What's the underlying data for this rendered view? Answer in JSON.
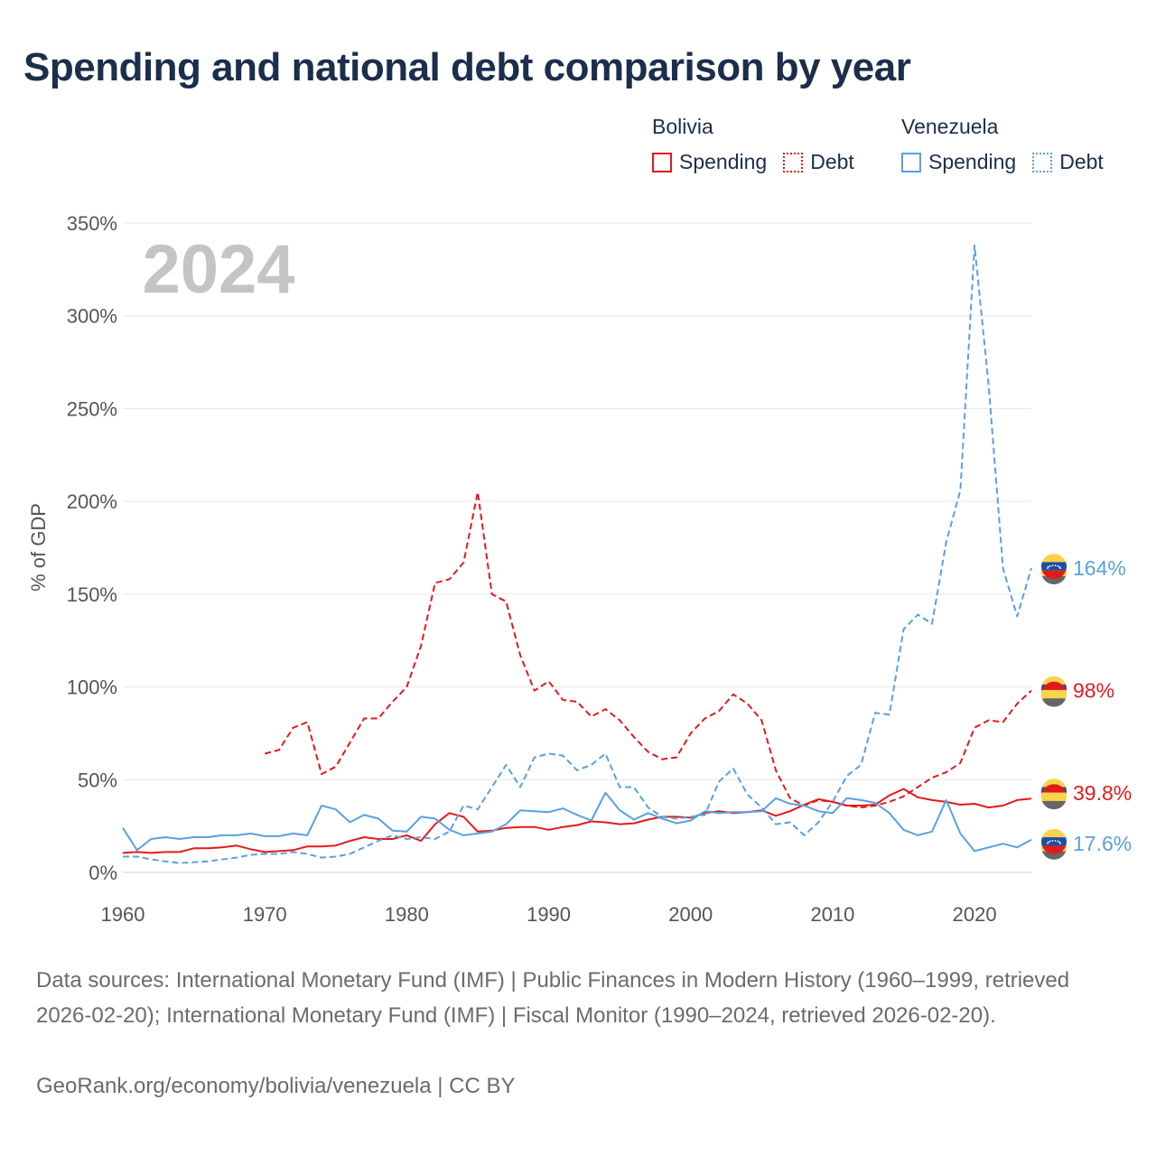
{
  "title": "Spending and national debt comparison by year",
  "legend": {
    "groups": [
      {
        "name": "Bolivia",
        "color": "#e31a1c",
        "items": [
          "Spending",
          "Debt"
        ]
      },
      {
        "name": "Venezuela",
        "color": "#5aa0e0",
        "items": [
          "Spending",
          "Debt"
        ]
      }
    ]
  },
  "year_label": "2024",
  "footer": {
    "sources": "Data sources: International Monetary Fund (IMF) | Public Finances in Modern History (1960–1999, retrieved 2026-02-20); International Monetary Fund (IMF) | Fiscal Monitor (1990–2024, retrieved 2026-02-20).",
    "credit": "GeoRank.org/economy/bolivia/venezuela | CC BY"
  },
  "chart_data": {
    "type": "line",
    "ylabel": "% of GDP",
    "xlim": [
      1960,
      2024
    ],
    "ylim": [
      0,
      350
    ],
    "x_ticks": [
      1960,
      1970,
      1980,
      1990,
      2000,
      2010,
      2020
    ],
    "y_ticks": [
      0,
      50,
      100,
      150,
      200,
      250,
      300,
      350
    ],
    "y_tick_labels": [
      "0%",
      "50%",
      "100%",
      "150%",
      "200%",
      "250%",
      "300%",
      "350%"
    ],
    "series": [
      {
        "name": "Bolivia Spending",
        "color": "#e31a1c",
        "dash": false,
        "end_label": "39.8%",
        "x": [
          1960,
          1961,
          1962,
          1963,
          1964,
          1965,
          1966,
          1967,
          1968,
          1969,
          1970,
          1971,
          1972,
          1973,
          1974,
          1975,
          1976,
          1977,
          1978,
          1979,
          1980,
          1981,
          1982,
          1983,
          1984,
          1985,
          1986,
          1987,
          1988,
          1989,
          1990,
          1991,
          1992,
          1993,
          1994,
          1995,
          1996,
          1997,
          1998,
          1999,
          2000,
          2001,
          2002,
          2003,
          2004,
          2005,
          2006,
          2007,
          2008,
          2009,
          2010,
          2011,
          2012,
          2013,
          2014,
          2015,
          2016,
          2017,
          2018,
          2019,
          2020,
          2021,
          2022,
          2023,
          2024
        ],
        "values": [
          10.5,
          11,
          10.5,
          11,
          11,
          13,
          13,
          13.5,
          14.5,
          12.5,
          11,
          11.5,
          12,
          14,
          14,
          14.5,
          17,
          19,
          18,
          18,
          20,
          17,
          26,
          32,
          30,
          22,
          22.5,
          24,
          24.5,
          24.5,
          23,
          24.5,
          25.5,
          27.5,
          27,
          26,
          26.5,
          28.5,
          30,
          30,
          29.5,
          32,
          33,
          32,
          32.5,
          33.5,
          30.5,
          33,
          36.5,
          39.5,
          38,
          36,
          36,
          36.5,
          41.5,
          45,
          40.5,
          39,
          38,
          36.5,
          37,
          35,
          36,
          39,
          39.8
        ]
      },
      {
        "name": "Bolivia Debt",
        "color": "#e31a1c",
        "dash": true,
        "end_label": "98%",
        "x": [
          1970,
          1971,
          1972,
          1973,
          1974,
          1975,
          1976,
          1977,
          1978,
          1979,
          1980,
          1981,
          1982,
          1983,
          1984,
          1985,
          1986,
          1987,
          1988,
          1989,
          1990,
          1991,
          1992,
          1993,
          1994,
          1995,
          1996,
          1997,
          1998,
          1999,
          2000,
          2001,
          2002,
          2003,
          2004,
          2005,
          2006,
          2007,
          2008,
          2009,
          2010,
          2011,
          2012,
          2013,
          2014,
          2015,
          2016,
          2017,
          2018,
          2019,
          2020,
          2021,
          2022,
          2023,
          2024
        ],
        "values": [
          64,
          66,
          78,
          81,
          53,
          57,
          70,
          83,
          83,
          92,
          100,
          122,
          156,
          158,
          167,
          205,
          150,
          146,
          117,
          98,
          103,
          93,
          92,
          84,
          88,
          82,
          73,
          65,
          61,
          62,
          75,
          83,
          87,
          96,
          91,
          82,
          55,
          40,
          36,
          39,
          38,
          36,
          35,
          36,
          38,
          41,
          46,
          51,
          54,
          59,
          78,
          82,
          81,
          91,
          98
        ]
      },
      {
        "name": "Venezuela Spending",
        "color": "#5aa0e0",
        "dash": false,
        "end_label": "17.6%",
        "x": [
          1960,
          1961,
          1962,
          1963,
          1964,
          1965,
          1966,
          1967,
          1968,
          1969,
          1970,
          1971,
          1972,
          1973,
          1974,
          1975,
          1976,
          1977,
          1978,
          1979,
          1980,
          1981,
          1982,
          1983,
          1984,
          1985,
          1986,
          1987,
          1988,
          1989,
          1990,
          1991,
          1992,
          1993,
          1994,
          1995,
          1996,
          1997,
          1998,
          1999,
          2000,
          2001,
          2002,
          2003,
          2004,
          2005,
          2006,
          2007,
          2008,
          2009,
          2010,
          2011,
          2012,
          2013,
          2014,
          2015,
          2016,
          2017,
          2018,
          2019,
          2020,
          2021,
          2022,
          2023,
          2024
        ],
        "values": [
          24,
          12,
          18,
          19,
          18,
          19,
          19,
          20,
          20,
          21,
          19.5,
          19.5,
          21,
          20,
          36,
          34,
          27,
          31,
          29,
          22.5,
          22,
          30,
          29,
          23,
          20,
          21,
          22,
          26,
          33.5,
          33,
          32.5,
          34.5,
          31,
          28,
          43,
          33.5,
          28.5,
          32,
          29,
          26.5,
          28,
          33,
          32,
          32.5,
          32.5,
          33,
          40,
          37,
          36,
          33,
          32,
          40,
          39,
          37.5,
          32,
          23,
          20,
          22,
          39,
          21,
          11.5,
          13.5,
          15.5,
          13.5,
          17.6
        ]
      },
      {
        "name": "Venezuela Debt",
        "color": "#5aa0e0",
        "dash": true,
        "end_label": "164%",
        "x": [
          1960,
          1961,
          1962,
          1963,
          1964,
          1965,
          1966,
          1967,
          1968,
          1969,
          1970,
          1971,
          1972,
          1973,
          1974,
          1975,
          1976,
          1977,
          1978,
          1979,
          1980,
          1981,
          1982,
          1983,
          1984,
          1985,
          1986,
          1987,
          1988,
          1989,
          1990,
          1991,
          1992,
          1993,
          1994,
          1995,
          1996,
          1997,
          1998,
          1999,
          2000,
          2001,
          2002,
          2003,
          2004,
          2005,
          2006,
          2007,
          2008,
          2009,
          2010,
          2011,
          2012,
          2013,
          2014,
          2015,
          2016,
          2017,
          2018,
          2019,
          2020,
          2021,
          2022,
          2023,
          2024
        ],
        "values": [
          8.5,
          8.5,
          7,
          6,
          5,
          5.5,
          6,
          7,
          8,
          9.5,
          10,
          10,
          11,
          10,
          8,
          8.5,
          10,
          13.5,
          17,
          20,
          18,
          19,
          18,
          22,
          36,
          34,
          46,
          58,
          46,
          62,
          64,
          63,
          55,
          58,
          64,
          46,
          46,
          35,
          30,
          29,
          30,
          31,
          49,
          56,
          42,
          35,
          26,
          27,
          20,
          27,
          38,
          52,
          58,
          86,
          85,
          131,
          139,
          134,
          178,
          206,
          338,
          262,
          164,
          138,
          164
        ]
      }
    ]
  }
}
